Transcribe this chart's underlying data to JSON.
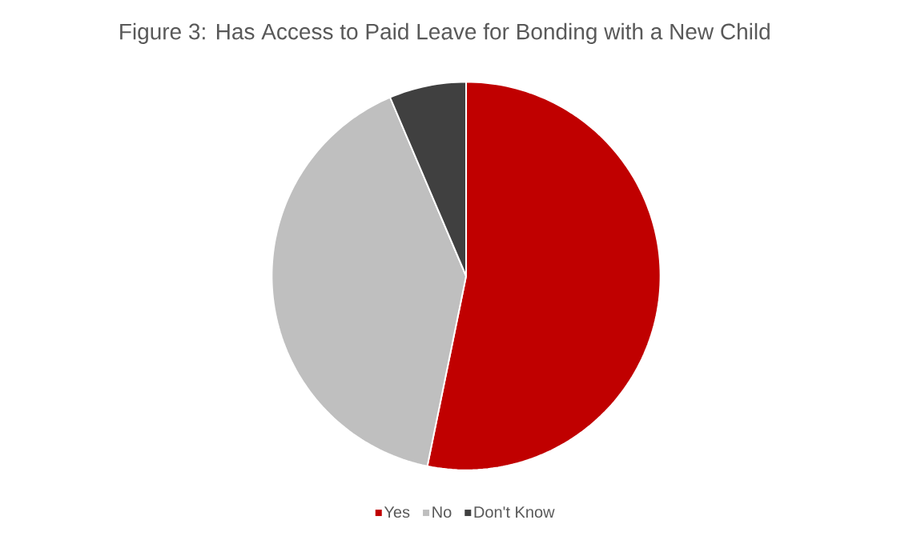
{
  "chart_data": {
    "type": "pie",
    "title": "Figure 3: Has Access to Paid Leave for Bonding with a New Child",
    "categories": [
      "Yes",
      "No",
      "Don't Know"
    ],
    "values": [
      53.2,
      40.4,
      6.4
    ],
    "colors": [
      "#c00000",
      "#bfbfbf",
      "#404040"
    ],
    "legend": "bottom"
  }
}
